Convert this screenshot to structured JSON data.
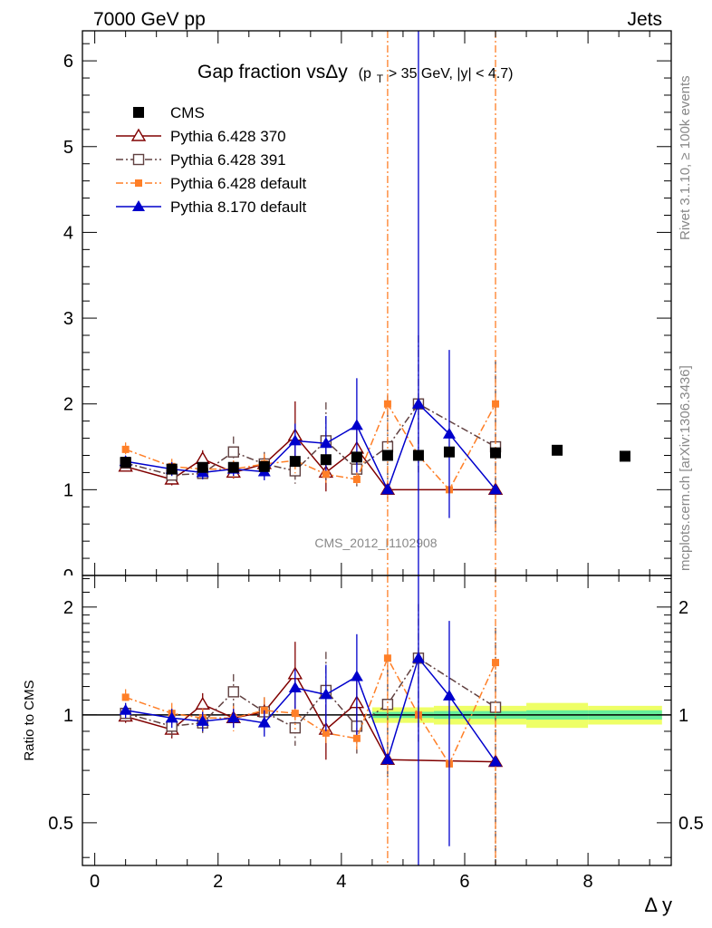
{
  "header": {
    "left": "7000 GeV pp",
    "right": "Jets"
  },
  "side_text": {
    "top": "Rivet 3.1.10, ≥ 100k events",
    "bottom": "mcplots.cern.ch [arXiv:1306.3436]"
  },
  "chart_data": {
    "type": "scatter",
    "title": "Gap fraction vsΔy",
    "title_cut": "(p",
    "title_cut_sub": "T",
    "title_cut_rest": " > 35 GeV, |y| < 4.7)",
    "watermark": "CMS_2012_I1102908",
    "xlabel": "Δ y",
    "ylabel_ratio": "Ratio to CMS",
    "xlim": [
      -0.2,
      9.35
    ],
    "ylim_main": [
      0,
      6.35
    ],
    "ylim_ratio": [
      0.38,
      2.45
    ],
    "main_y_ticks": [
      {
        "v": 0,
        "label": "0"
      },
      {
        "v": 1,
        "label": "1"
      },
      {
        "v": 2,
        "label": "2"
      },
      {
        "v": 3,
        "label": "3"
      },
      {
        "v": 4,
        "label": "4"
      },
      {
        "v": 5,
        "label": "5"
      },
      {
        "v": 6,
        "label": "6"
      }
    ],
    "ratio_y_ticks": [
      {
        "v": 0.5,
        "label": "0.5"
      },
      {
        "v": 1,
        "label": "1"
      },
      {
        "v": 2,
        "label": "2"
      }
    ],
    "x_ticks": [
      {
        "v": 0,
        "label": "0"
      },
      {
        "v": 2,
        "label": "2"
      },
      {
        "v": 4,
        "label": "4"
      },
      {
        "v": 6,
        "label": "6"
      },
      {
        "v": 8,
        "label": "8"
      }
    ],
    "series": [
      {
        "name": "CMS",
        "color": "#000000",
        "marker": "square-filled",
        "line": "none",
        "x": [
          0.5,
          1.25,
          1.75,
          2.25,
          2.75,
          3.25,
          3.75,
          4.25,
          4.75,
          5.25,
          5.75,
          6.5,
          7.5,
          8.6
        ],
        "y": [
          1.32,
          1.24,
          1.26,
          1.26,
          1.27,
          1.33,
          1.35,
          1.38,
          1.4,
          1.4,
          1.44,
          1.43,
          1.46,
          1.39
        ],
        "ratio": [
          1,
          1,
          1,
          1,
          1,
          1,
          1,
          1,
          1,
          1,
          1,
          1,
          1,
          1
        ]
      },
      {
        "name": "Pythia 6.428 370",
        "color": "#800000",
        "marker": "triangle-open",
        "line": "solid",
        "x": [
          0.5,
          1.25,
          1.75,
          2.25,
          2.75,
          3.25,
          3.75,
          4.25,
          4.75,
          6.5
        ],
        "y": [
          1.27,
          1.12,
          1.36,
          1.2,
          1.3,
          1.63,
          1.2,
          1.48,
          1.0,
          1.0
        ],
        "err": [
          0.05,
          0.07,
          0.1,
          0.07,
          0.1,
          0.4,
          0.22,
          0.25,
          0,
          0
        ],
        "ratio": [
          0.99,
          0.91,
          1.07,
          0.98,
          1.02,
          1.3,
          0.91,
          1.08,
          0.75,
          0.74
        ],
        "ratio_err": [
          0.04,
          0.05,
          0.08,
          0.05,
          0.08,
          0.3,
          0.16,
          0.18,
          0,
          0
        ]
      },
      {
        "name": "Pythia 6.428 391",
        "color": "#604040",
        "marker": "square-open",
        "line": "dashdot",
        "x": [
          0.5,
          1.25,
          1.75,
          2.25,
          2.75,
          3.25,
          3.75,
          4.25,
          4.75,
          5.25,
          6.5
        ],
        "y": [
          1.31,
          1.17,
          1.19,
          1.44,
          1.3,
          1.22,
          1.57,
          1.24,
          1.5,
          2.0,
          1.5
        ],
        "err": [
          0.06,
          0.08,
          0.08,
          0.18,
          0.14,
          0.15,
          0.45,
          0.2,
          0.6,
          0.8,
          1.0
        ],
        "ratio": [
          1.01,
          0.93,
          0.95,
          1.16,
          1.02,
          0.92,
          1.17,
          0.93,
          1.07,
          1.44,
          1.05
        ],
        "ratio_err": [
          0.05,
          0.06,
          0.06,
          0.14,
          0.1,
          0.1,
          0.33,
          0.15,
          0.4,
          0.6,
          0.7
        ]
      },
      {
        "name": "Pythia 6.428 default",
        "color": "#ff7f27",
        "marker": "square-filled",
        "line": "dashdot",
        "x": [
          0.5,
          1.25,
          1.75,
          2.25,
          2.75,
          3.25,
          3.75,
          4.25,
          4.75,
          5.25,
          5.75,
          6.5
        ],
        "y": [
          1.47,
          1.27,
          1.24,
          1.24,
          1.3,
          1.34,
          1.18,
          1.12,
          2.0,
          1.4,
          1.0,
          2.0
        ],
        "err": [
          0.08,
          0.09,
          0.08,
          0.1,
          0.12,
          0.15,
          0.1,
          0.08,
          6,
          0,
          0,
          6
        ],
        "ratio": [
          1.12,
          1.01,
          0.98,
          0.98,
          1.03,
          1.01,
          0.89,
          0.86,
          1.44,
          1.0,
          0.73,
          1.4
        ],
        "ratio_err": [
          0.06,
          0.07,
          0.06,
          0.08,
          0.09,
          0.1,
          0.07,
          0.06,
          6,
          0,
          0,
          6
        ]
      },
      {
        "name": "Pythia 8.170 default",
        "color": "#0000cc",
        "marker": "triangle-filled",
        "line": "solid",
        "x": [
          0.5,
          1.25,
          1.75,
          2.25,
          2.75,
          3.25,
          3.75,
          4.25,
          4.75,
          5.25,
          5.75,
          6.5
        ],
        "y": [
          1.33,
          1.24,
          1.2,
          1.24,
          1.21,
          1.57,
          1.54,
          1.75,
          1.0,
          2.0,
          1.65,
          1.0
        ],
        "err": [
          0.06,
          0.08,
          0.08,
          0.08,
          0.1,
          0.2,
          0.32,
          0.55,
          0,
          8,
          0.98,
          0
        ],
        "ratio": [
          1.03,
          0.98,
          0.96,
          0.98,
          0.95,
          1.19,
          1.14,
          1.28,
          0.75,
          1.44,
          1.13,
          0.74
        ],
        "ratio_err": [
          0.05,
          0.06,
          0.06,
          0.06,
          0.08,
          0.15,
          0.24,
          0.4,
          0,
          8,
          0.7,
          0
        ]
      }
    ],
    "cms_band": [
      {
        "x0": 4.5,
        "x1": 5.0,
        "inner": 0.02,
        "outer": 0.05
      },
      {
        "x0": 5.0,
        "x1": 5.5,
        "inner": 0.02,
        "outer": 0.05
      },
      {
        "x0": 5.5,
        "x1": 6.0,
        "inner": 0.025,
        "outer": 0.06
      },
      {
        "x0": 6.0,
        "x1": 7.0,
        "inner": 0.025,
        "outer": 0.06
      },
      {
        "x0": 7.0,
        "x1": 8.0,
        "inner": 0.03,
        "outer": 0.08
      },
      {
        "x0": 8.0,
        "x1": 9.2,
        "inner": 0.03,
        "outer": 0.06
      }
    ],
    "band_colors": {
      "inner": "#66ee99",
      "outer": "#eeff66"
    }
  }
}
